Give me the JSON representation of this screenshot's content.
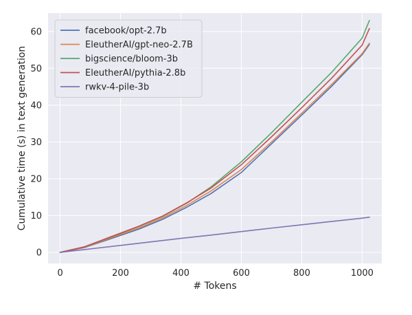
{
  "chart_data": {
    "type": "line",
    "title": "",
    "xlabel": "# Tokens",
    "ylabel": "Cumulative time (s) in text generation",
    "xlim": [
      -40,
      1065
    ],
    "ylim": [
      -3,
      65
    ],
    "xticks": [
      0,
      200,
      400,
      600,
      800,
      1000
    ],
    "yticks": [
      0,
      10,
      20,
      30,
      40,
      50,
      60
    ],
    "grid": true,
    "legend_position": "top-left",
    "background_color": "#eaeaf2",
    "series": [
      {
        "name": "facebook/opt-2.7b",
        "color": "#4c72b0",
        "x": [
          0,
          80,
          160,
          260,
          340,
          420,
          500,
          600,
          700,
          800,
          900,
          1000,
          1024
        ],
        "y": [
          0,
          1.3,
          3.5,
          6.3,
          9.0,
          12.3,
          16.0,
          21.7,
          29.5,
          37.3,
          45.2,
          53.7,
          56.5
        ]
      },
      {
        "name": "EleutherAI/gpt-neo-2.7B",
        "color": "#dd8452",
        "x": [
          0,
          80,
          160,
          260,
          340,
          420,
          500,
          600,
          700,
          800,
          900,
          1000,
          1024
        ],
        "y": [
          0,
          1.4,
          3.7,
          6.6,
          9.4,
          12.8,
          16.7,
          22.5,
          30.0,
          37.8,
          45.7,
          54.0,
          56.8
        ]
      },
      {
        "name": "bigscience/bloom-3b",
        "color": "#55a868",
        "x": [
          0,
          80,
          160,
          260,
          340,
          420,
          500,
          600,
          700,
          800,
          900,
          1000,
          1024
        ],
        "y": [
          0,
          1.5,
          3.9,
          7.0,
          9.8,
          13.4,
          17.8,
          24.6,
          32.5,
          40.8,
          49.0,
          58.2,
          63.0
        ]
      },
      {
        "name": "EleutherAI/pythia-2.8b",
        "color": "#c44e52",
        "x": [
          0,
          80,
          160,
          260,
          340,
          420,
          500,
          600,
          700,
          800,
          900,
          1000,
          1024
        ],
        "y": [
          0,
          1.5,
          4.0,
          7.1,
          9.9,
          13.5,
          17.5,
          23.8,
          31.4,
          39.3,
          47.4,
          56.3,
          60.8
        ]
      },
      {
        "name": "rwkv-4-pile-3b",
        "color": "#8172b3",
        "x": [
          0,
          100,
          200,
          300,
          400,
          500,
          600,
          700,
          800,
          900,
          1000,
          1024
        ],
        "y": [
          0,
          0.95,
          1.9,
          2.85,
          3.8,
          4.7,
          5.65,
          6.6,
          7.5,
          8.4,
          9.3,
          9.55
        ]
      }
    ]
  }
}
